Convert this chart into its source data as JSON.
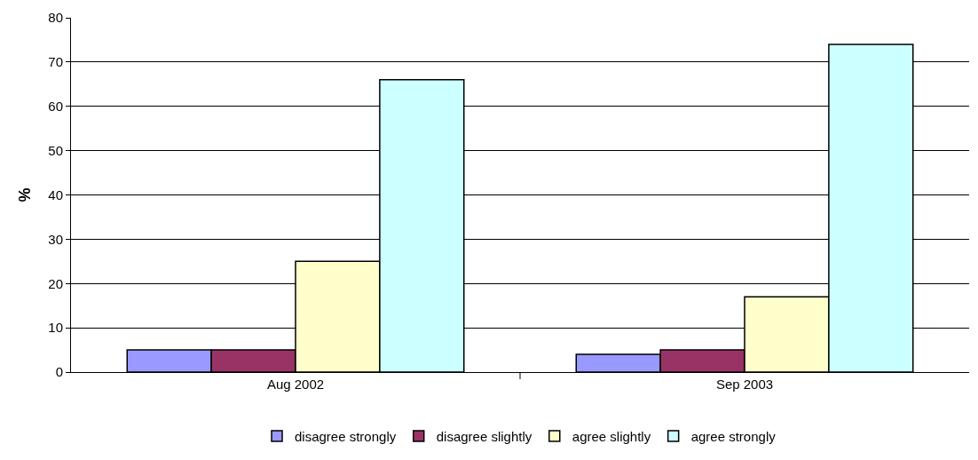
{
  "chart_data": {
    "type": "bar",
    "ylabel": "%",
    "categories": [
      "Aug 2002",
      "Sep 2003"
    ],
    "series": [
      {
        "name": "disagree strongly",
        "color": "#9999ff",
        "values": [
          5,
          4
        ]
      },
      {
        "name": "disagree slightly",
        "color": "#993366",
        "values": [
          5,
          5
        ]
      },
      {
        "name": "agree slightly",
        "color": "#ffffcc",
        "values": [
          25,
          17
        ]
      },
      {
        "name": "agree strongly",
        "color": "#ccffff",
        "values": [
          66,
          74
        ]
      }
    ],
    "ylim": [
      0,
      80
    ],
    "yticks": [
      0,
      10,
      20,
      30,
      40,
      50,
      60,
      70,
      80
    ],
    "grid": "y",
    "legend": "bottom"
  }
}
